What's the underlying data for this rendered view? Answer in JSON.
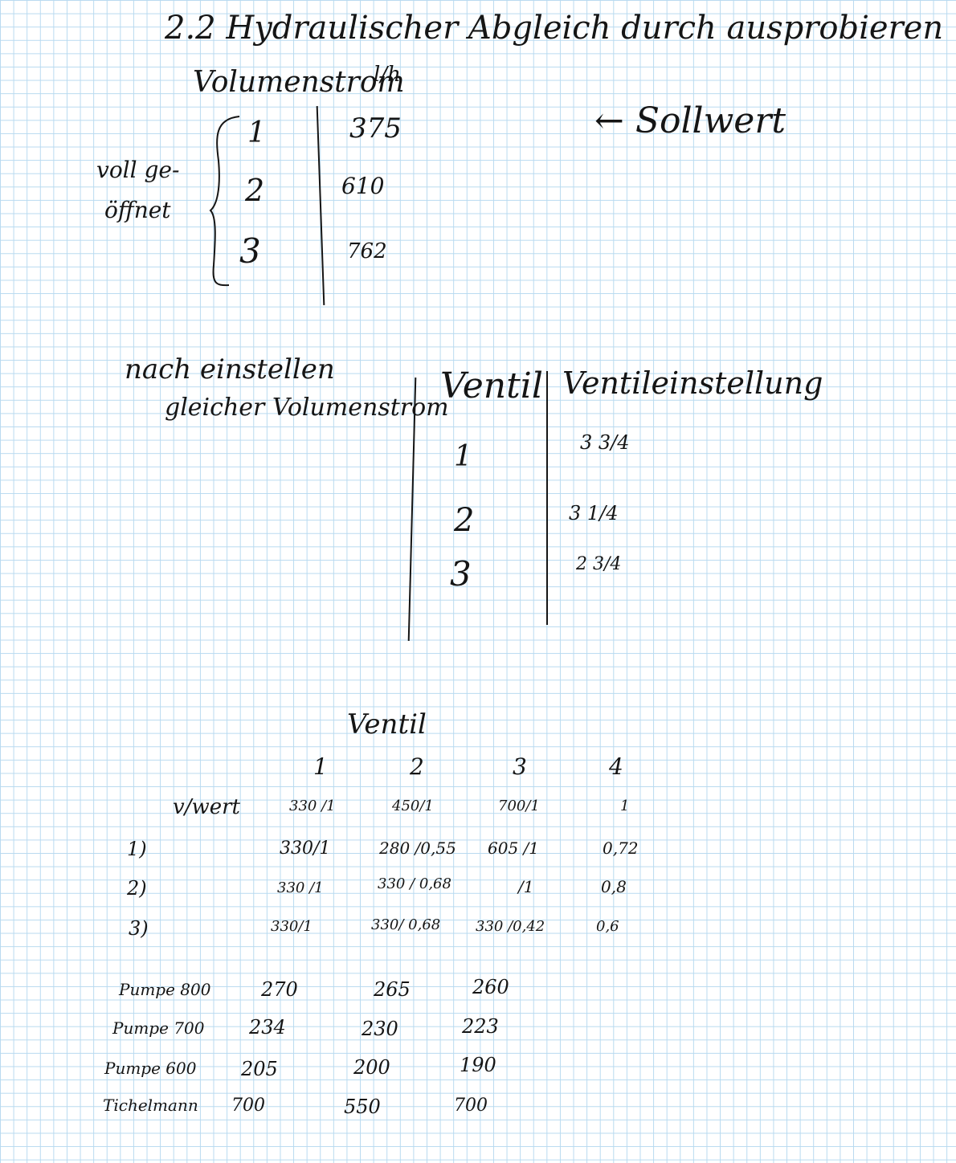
{
  "title": "2.2 Hydraulischer Abgleich durch ausprobieren",
  "section1": {
    "header": "Volumenstrom",
    "unit": "l/h",
    "group_label_line1": "voll ge-",
    "group_label_line2": "öffnet",
    "note": "← Sollwert",
    "rows": [
      {
        "valve": "1",
        "flow": "375"
      },
      {
        "valve": "2",
        "flow": "610"
      },
      {
        "valve": "3",
        "flow": "762"
      }
    ]
  },
  "section2": {
    "label_line1": "nach einstellen",
    "label_line2": "gleicher Volumenstrom",
    "col_valve": "Ventil",
    "col_setting": "Ventileinstellung",
    "rows": [
      {
        "valve": "1",
        "setting": "3 3/4"
      },
      {
        "valve": "2",
        "setting": "3 1/4"
      },
      {
        "valve": "3",
        "setting": "2 3/4"
      }
    ]
  },
  "section3": {
    "heading": "Ventil",
    "columns": [
      "1",
      "2",
      "3",
      "4"
    ],
    "rows": [
      {
        "label": "v/wert",
        "cells": [
          "330 /1",
          "450/1",
          "700/1",
          "1"
        ]
      },
      {
        "label": "1)",
        "cells": [
          "330/1",
          "280 /0,55",
          "605 /1",
          "0,72"
        ]
      },
      {
        "label": "2)",
        "cells": [
          "330 /1",
          "330 / 0,68",
          "/1",
          "0,8"
        ]
      },
      {
        "label": "3)",
        "cells": [
          "330/1",
          "330/ 0,68",
          "330 /0,42",
          "0,6"
        ]
      }
    ]
  },
  "section4": {
    "rows": [
      {
        "label": "Pumpe 800",
        "cells": [
          "270",
          "265",
          "260"
        ]
      },
      {
        "label": "Pumpe 700",
        "cells": [
          "234",
          "230",
          "223"
        ]
      },
      {
        "label": "Pumpe 600",
        "cells": [
          "205",
          "200",
          "190"
        ]
      },
      {
        "label": "Tichelmann",
        "cells": [
          "700",
          "550",
          "700"
        ]
      }
    ]
  }
}
